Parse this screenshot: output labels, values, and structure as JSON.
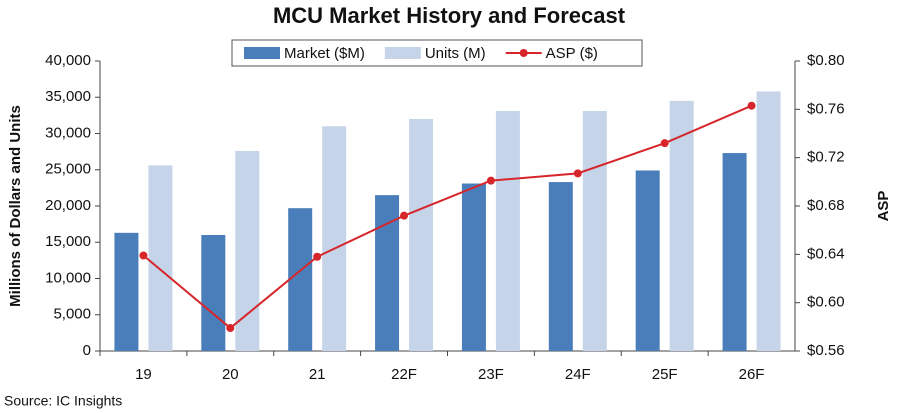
{
  "chart_data": {
    "type": "bar-line",
    "title": "MCU Market History and Forecast",
    "y_label": "Millions of Dollars and Units",
    "y2_label": "ASP",
    "source": "Source:  IC Insights",
    "categories": [
      "19",
      "20",
      "21",
      "22F",
      "23F",
      "24F",
      "25F",
      "26F"
    ],
    "series": [
      {
        "name": "Market ($M)",
        "color": "#4a7ebb",
        "kind": "bar",
        "values": [
          16300,
          16000,
          19700,
          21500,
          23100,
          23300,
          24900,
          27300
        ]
      },
      {
        "name": "Units (M)",
        "color": "#c6d4e9",
        "kind": "bar",
        "values": [
          25600,
          27600,
          31000,
          32000,
          33100,
          33100,
          34500,
          35800
        ]
      },
      {
        "name": "ASP ($)",
        "color": "#d7262b",
        "kind": "line",
        "axis": "y2",
        "values": [
          0.639,
          0.579,
          0.638,
          0.672,
          0.701,
          0.707,
          0.732,
          0.763
        ]
      }
    ],
    "ylim": [
      0,
      40000
    ],
    "yticks": [
      0,
      {
        "value": 5000,
        "label": "5,000"
      },
      {
        "value": 10000,
        "label": "10,000"
      },
      {
        "value": 15000,
        "label": "15,000"
      },
      {
        "value": 20000,
        "label": "20,000"
      },
      {
        "value": 25000,
        "label": "25,000"
      },
      {
        "value": 30000,
        "label": "30,000"
      },
      {
        "value": 35000,
        "label": "35,000"
      },
      {
        "value": 40000,
        "label": "40,000"
      }
    ],
    "y2lim": [
      0.56,
      0.8
    ],
    "y2ticks": [
      {
        "value": 0.56,
        "label": "$0.56"
      },
      {
        "value": 0.6,
        "label": "$0.60"
      },
      {
        "value": 0.64,
        "label": "$0.64"
      },
      {
        "value": 0.68,
        "label": "$0.68"
      },
      {
        "value": 0.72,
        "label": "$0.72"
      },
      {
        "value": 0.76,
        "label": "$0.76"
      },
      {
        "value": 0.8,
        "label": "$0.80"
      }
    ],
    "grid": false,
    "legend": "top"
  }
}
